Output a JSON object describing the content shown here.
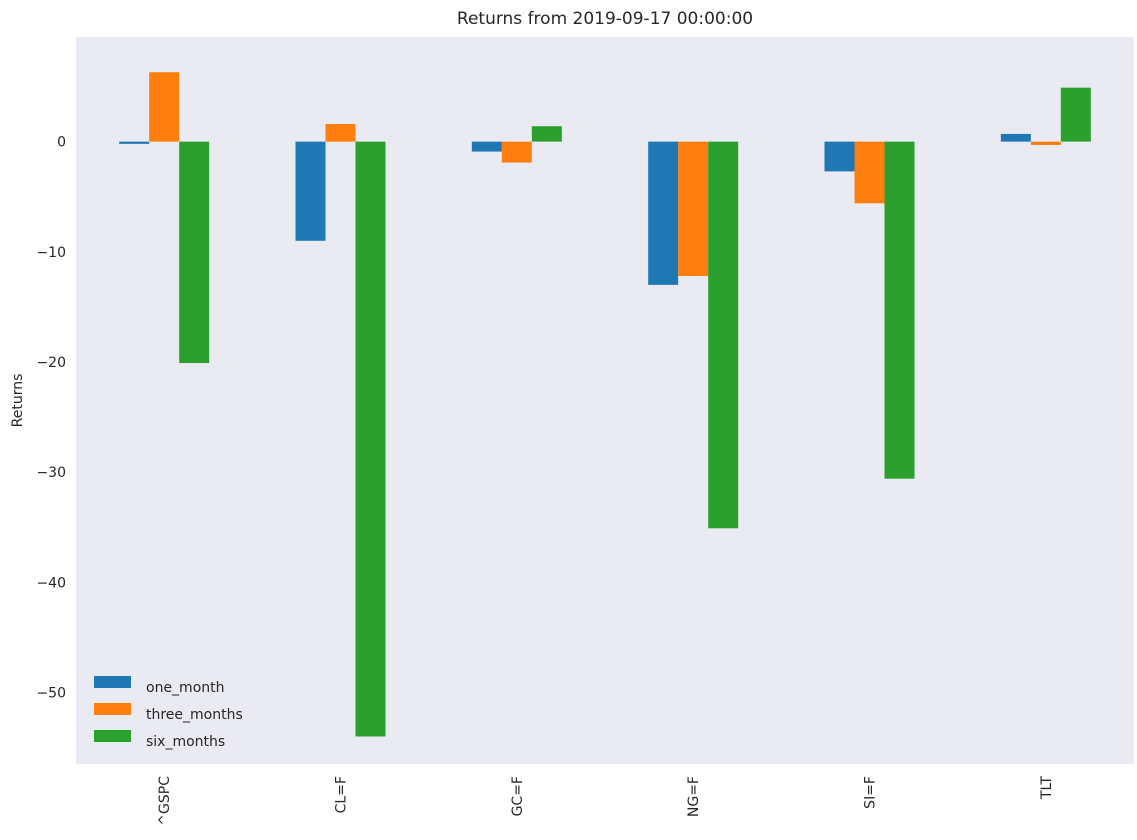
{
  "chart_data": {
    "type": "bar",
    "title": "Returns from 2019-09-17 00:00:00",
    "xlabel": "",
    "ylabel": "Returns",
    "ylim": [
      -56.5,
      9.5
    ],
    "yticks": [
      0,
      -10,
      -20,
      -30,
      -40,
      -50
    ],
    "categories": [
      "^GSPC",
      "CL=F",
      "GC=F",
      "NG=F",
      "SI=F",
      "TLT"
    ],
    "series": [
      {
        "name": "one_month",
        "color": "#1f77b4",
        "values": [
          -0.2,
          -9.0,
          -0.9,
          -13.0,
          -2.7,
          0.7
        ]
      },
      {
        "name": "three_months",
        "color": "#ff7f0e",
        "values": [
          6.3,
          1.6,
          -1.9,
          -12.2,
          -5.6,
          -0.3
        ]
      },
      {
        "name": "six_months",
        "color": "#2ca02c",
        "values": [
          -20.1,
          -54.0,
          1.4,
          -35.1,
          -30.6,
          4.9
        ]
      }
    ],
    "grid": false,
    "legend_position": "lower-left",
    "background": "#eaeaf2"
  }
}
